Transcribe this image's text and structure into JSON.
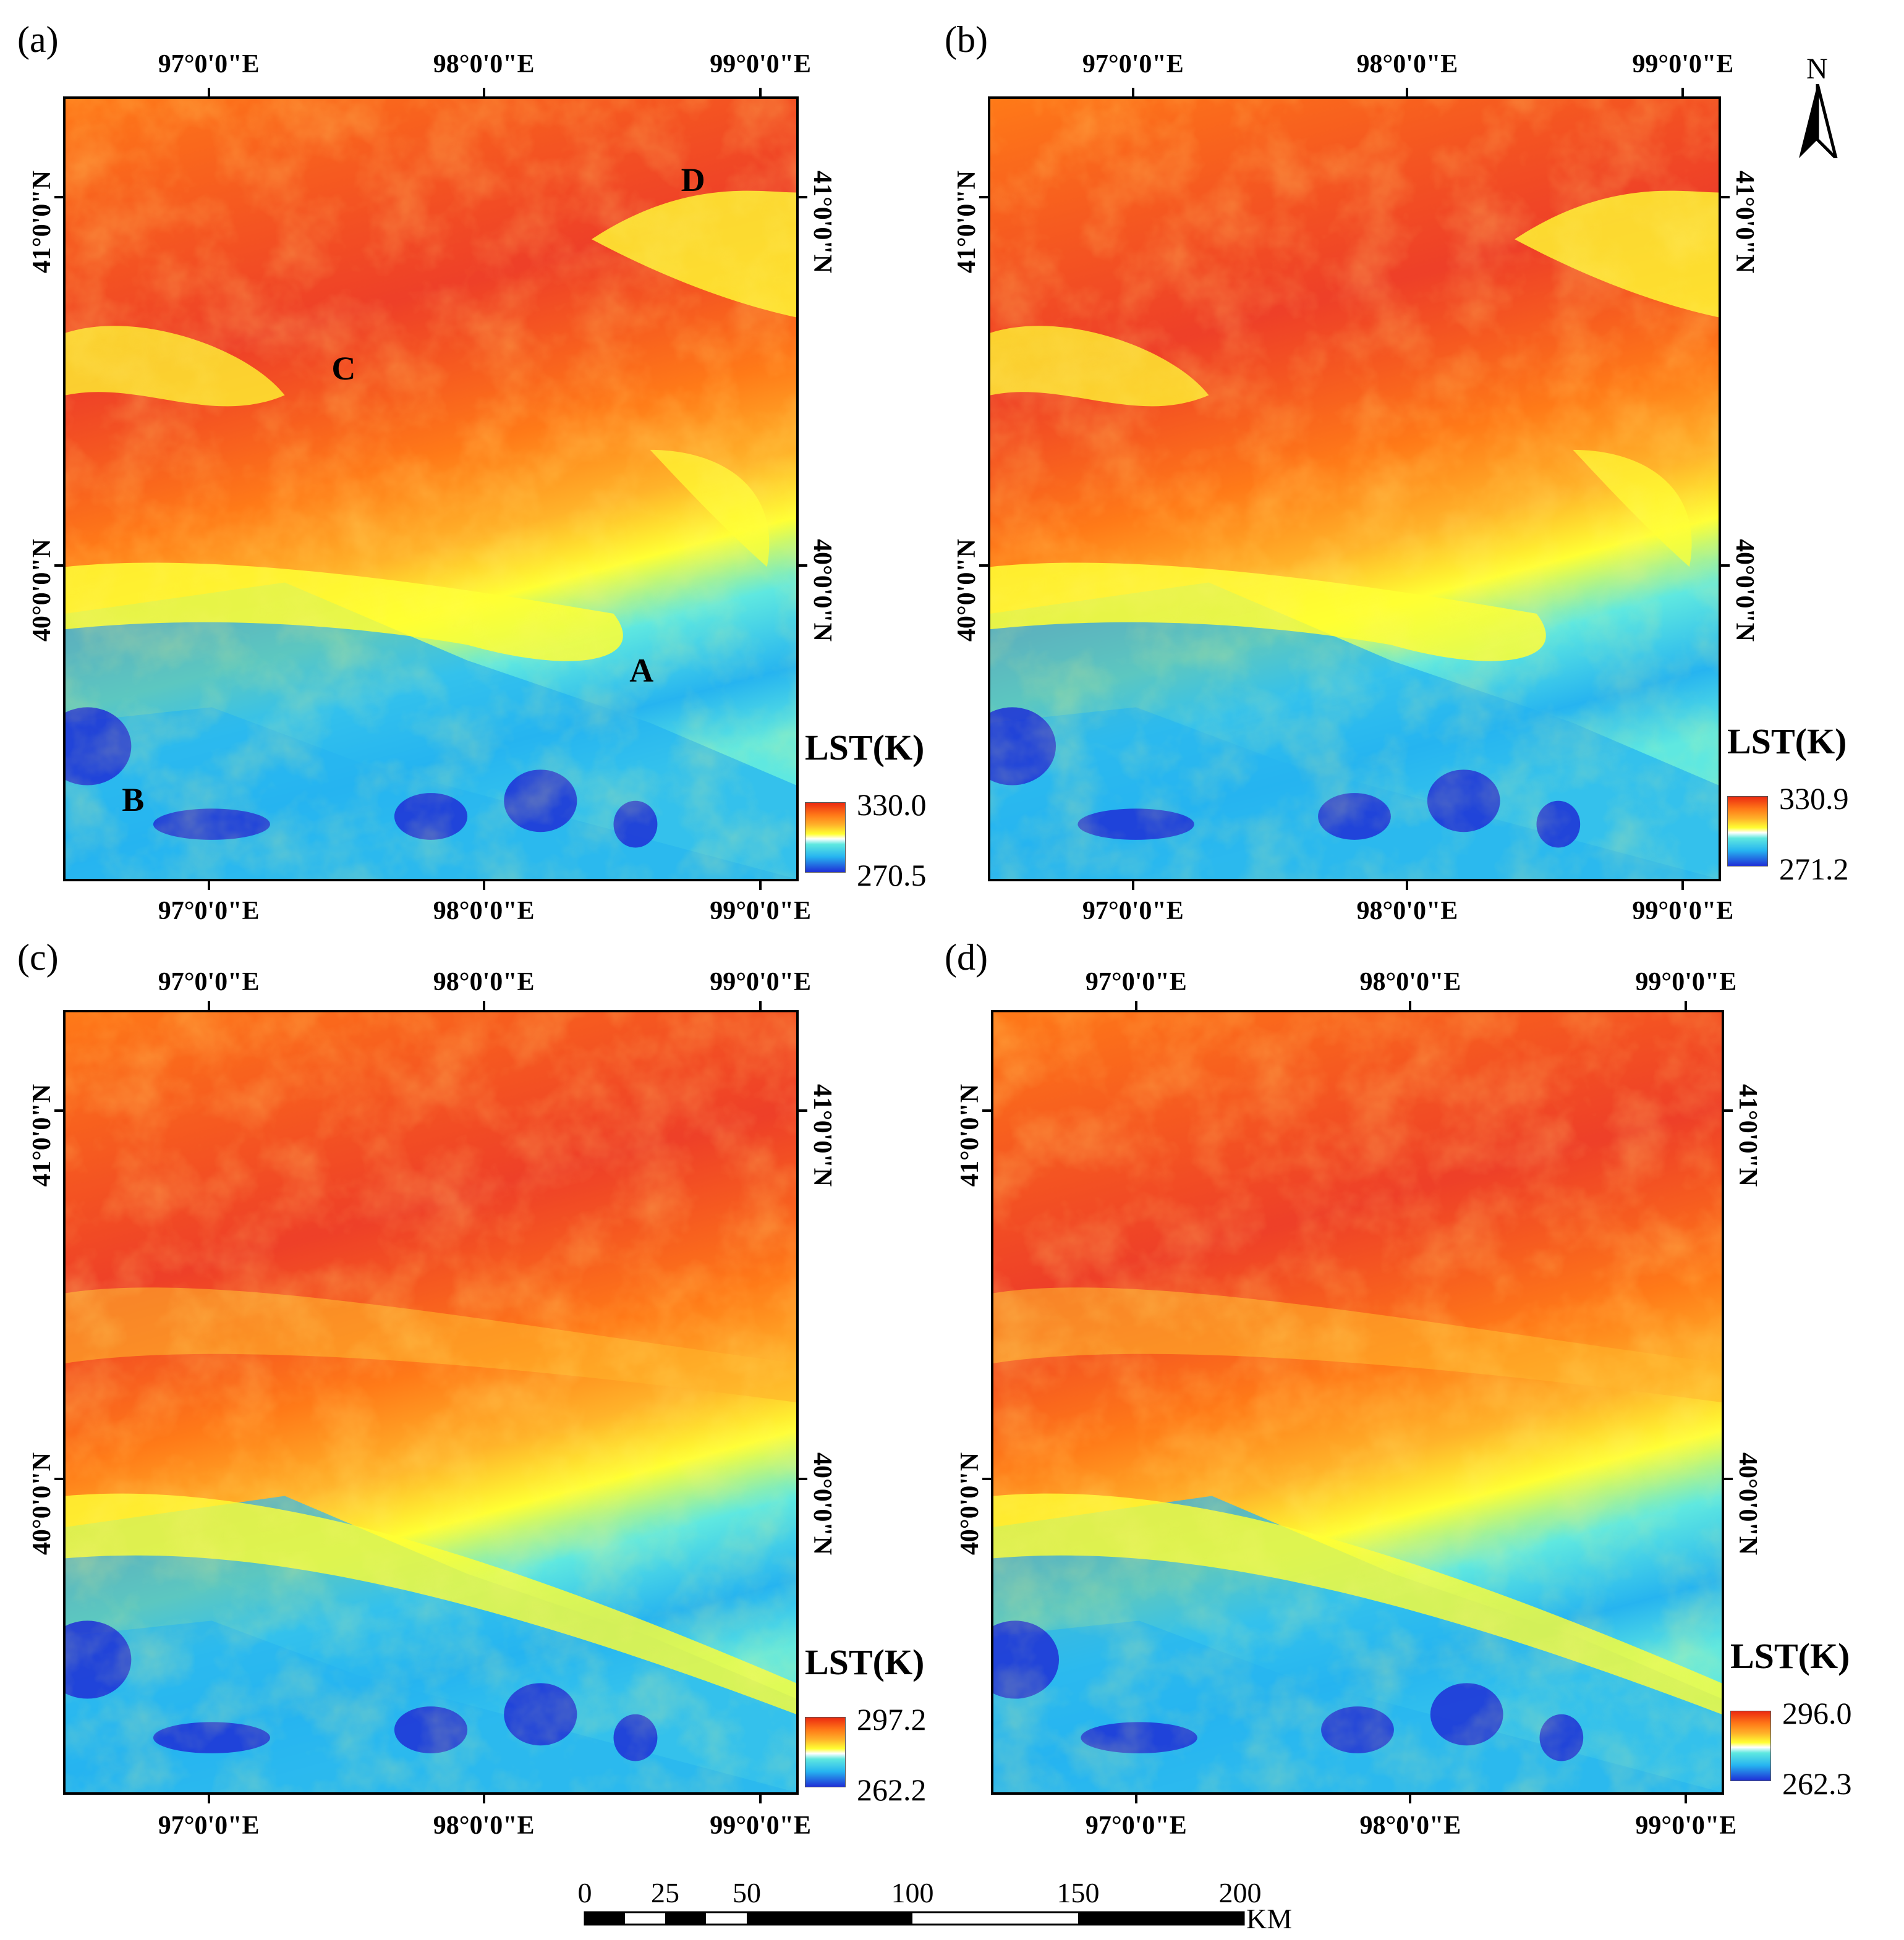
{
  "panels": [
    {
      "label": "(a)",
      "legend": {
        "title": "LST(K)",
        "max": "330.0",
        "min": "270.5"
      },
      "sites": [
        {
          "label": "D"
        },
        {
          "label": "C"
        },
        {
          "label": "A"
        },
        {
          "label": "B"
        }
      ]
    },
    {
      "label": "(b)",
      "legend": {
        "title": "LST(K)",
        "max": "330.9",
        "min": "271.2"
      },
      "sites": []
    },
    {
      "label": "(c)",
      "legend": {
        "title": "LST(K)",
        "max": "297.2",
        "min": "262.2"
      },
      "sites": []
    },
    {
      "label": "(d)",
      "legend": {
        "title": "LST(K)",
        "max": "296.0",
        "min": "262.3"
      },
      "sites": []
    }
  ],
  "longitude_labels": [
    "97°0'0\"E",
    "98°0'0\"E",
    "99°0'0\"E"
  ],
  "latitude_labels": [
    "41°0'0\"N",
    "40°0'0\"N"
  ],
  "north_arrow": {
    "label": "N",
    "icon": "north-arrow-icon"
  },
  "scale_bar": {
    "ticks": [
      "0",
      "25",
      "50",
      "100",
      "150",
      "200"
    ],
    "unit": "KM"
  },
  "colors": {
    "colormap": [
      "#1f2fd6",
      "#26b4f0",
      "#5fe8e0",
      "#ffff33",
      "#ffb32a",
      "#ff7a18",
      "#ec2a10"
    ]
  }
}
